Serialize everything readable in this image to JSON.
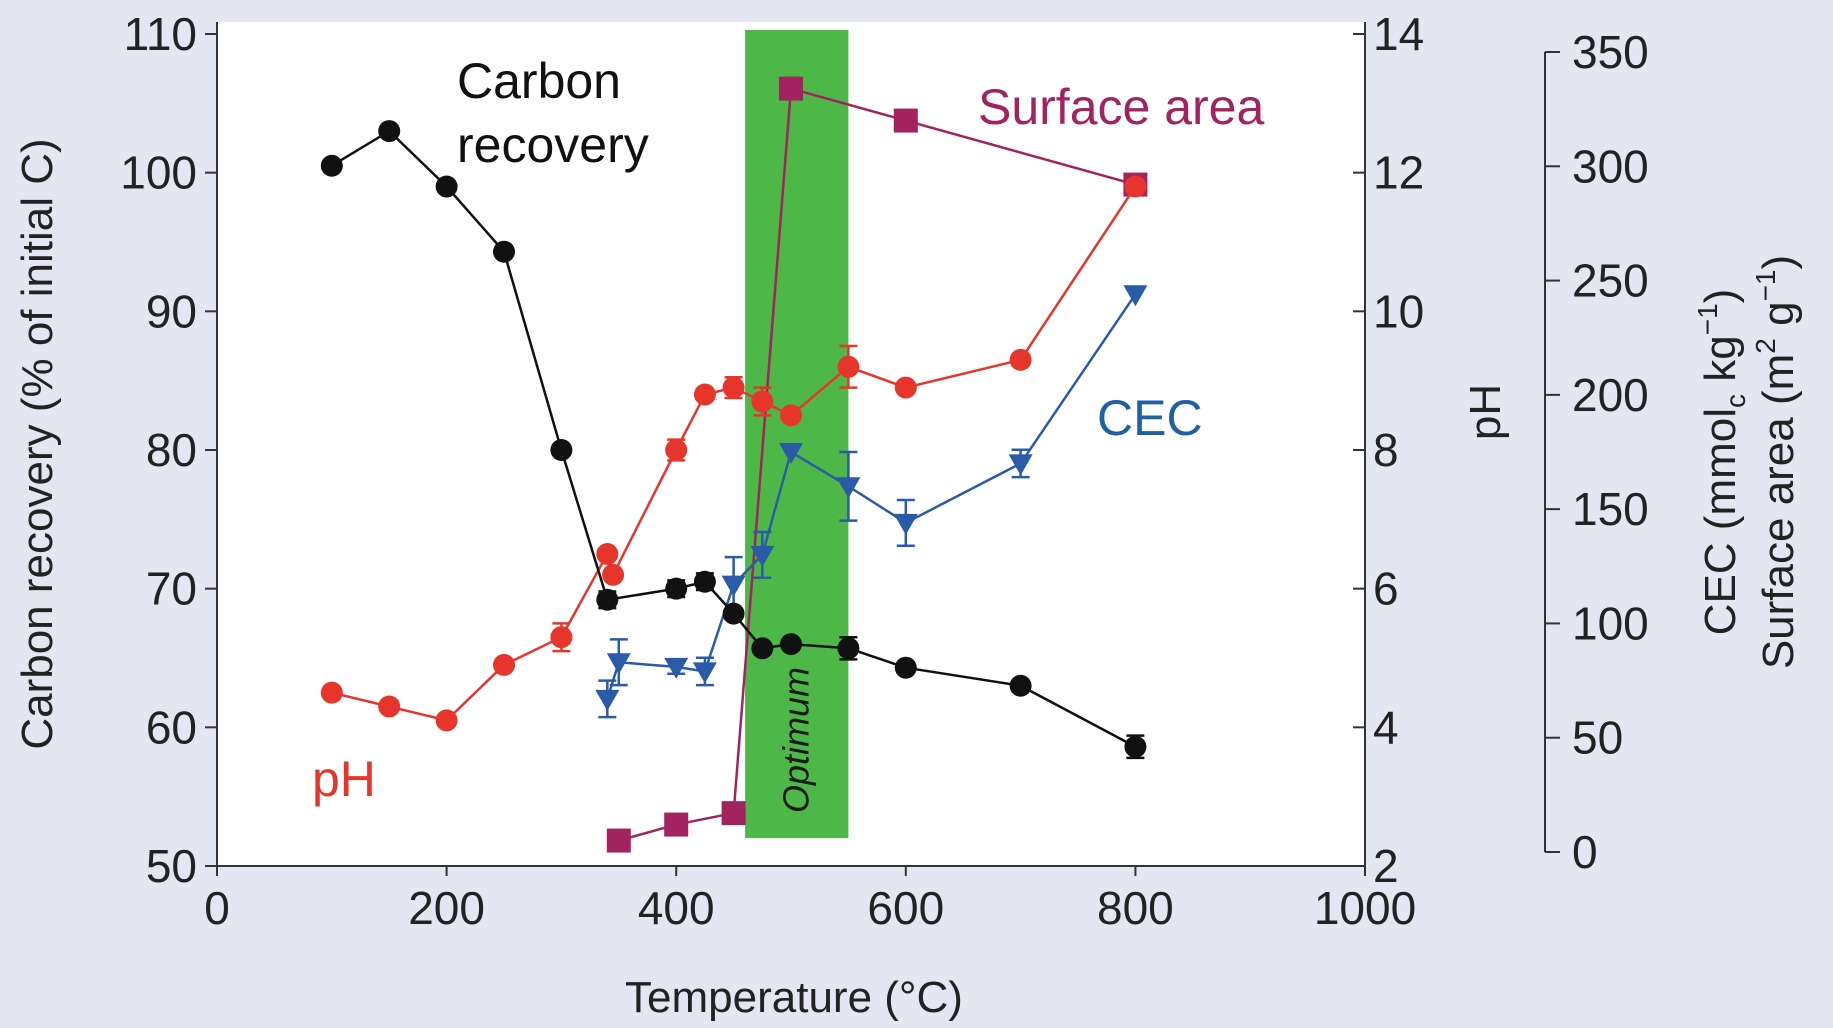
{
  "chart_data": {
    "type": "line",
    "xlabel": "Temperature (°C)",
    "xlim": [
      0,
      1000
    ],
    "xticks": [
      0,
      200,
      400,
      600,
      800,
      1000
    ],
    "axes": {
      "left": {
        "label": "Carbon recovery (% of initial C)",
        "min": 50,
        "max": 110,
        "ticks": [
          50,
          60,
          70,
          80,
          90,
          100,
          110
        ]
      },
      "right1": {
        "label": "pH",
        "min": 2,
        "max": 14,
        "ticks": [
          2,
          4,
          6,
          8,
          10,
          12,
          14
        ]
      },
      "right2": {
        "label_line1": "CEC (mmol",
        "label_line1_sub": "c",
        "label_line1_end": " kg",
        "label_line1_sup": "−1",
        "label_line1_close": ")",
        "label_line2": "Surface area (m",
        "label_line2_sup1": "2",
        "label_line2_mid": " g",
        "label_line2_sup2": "−1",
        "label_line2_close": ")",
        "min": 0,
        "max": 350,
        "ticks": [
          0,
          50,
          100,
          150,
          200,
          250,
          300,
          350
        ]
      }
    },
    "band": {
      "label": "Optimum",
      "x_start": 460,
      "x_end": 550,
      "color": "#4db848"
    },
    "series": [
      {
        "name": "Carbon recovery",
        "axis": "left",
        "color": "#111111",
        "marker": "circle",
        "x": [
          100,
          150,
          200,
          250,
          300,
          340,
          400,
          425,
          450,
          475,
          500,
          550,
          600,
          700,
          800
        ],
        "y": [
          100.5,
          103,
          99,
          94.3,
          80,
          69.2,
          70,
          70.5,
          68.2,
          65.7,
          66,
          65.7,
          64.3,
          63,
          58.6
        ],
        "err": [
          0,
          0,
          0,
          0,
          0,
          0.6,
          0.6,
          0.6,
          0,
          0,
          0,
          0.8,
          0,
          0,
          0.8
        ]
      },
      {
        "name": "pH",
        "axis": "right1",
        "color": "#e8352c",
        "marker": "circle",
        "x": [
          100,
          150,
          200,
          250,
          300,
          340,
          345,
          400,
          425,
          450,
          475,
          500,
          550,
          600,
          700,
          800
        ],
        "y": [
          4.5,
          4.3,
          4.1,
          4.9,
          5.3,
          6.5,
          6.2,
          8,
          8.8,
          8.9,
          8.7,
          8.5,
          9.2,
          8.9,
          9.3,
          11.8
        ],
        "err": [
          0,
          0,
          0,
          0,
          0.2,
          0,
          0,
          0.15,
          0,
          0.15,
          0.2,
          0,
          0.3,
          0,
          0,
          0
        ]
      },
      {
        "name": "CEC",
        "axis": "right2",
        "color": "#2a5ba8",
        "marker": "triangle-down",
        "x": [
          340,
          350,
          400,
          425,
          450,
          475,
          500,
          550,
          600,
          700,
          800
        ],
        "y": [
          67,
          83,
          81,
          79,
          117,
          130,
          175,
          160,
          144,
          170,
          244
        ],
        "err": [
          8,
          10,
          3,
          6,
          12,
          10,
          0,
          15,
          10,
          6,
          0
        ]
      },
      {
        "name": "Surface area",
        "axis": "right2",
        "color": "#a3235f",
        "marker": "square",
        "x": [
          350,
          400,
          450,
          500,
          600,
          800
        ],
        "y": [
          5,
          12,
          17,
          334,
          320,
          292
        ]
      }
    ],
    "annotations": [
      {
        "text_line1": "Carbon",
        "text_line2": "recovery",
        "color": "#111111"
      },
      {
        "text": "Surface area",
        "color": "#a3235f"
      },
      {
        "text": "CEC",
        "color": "#1f5fa5"
      },
      {
        "text": "pH",
        "color": "#e8352c"
      }
    ]
  }
}
